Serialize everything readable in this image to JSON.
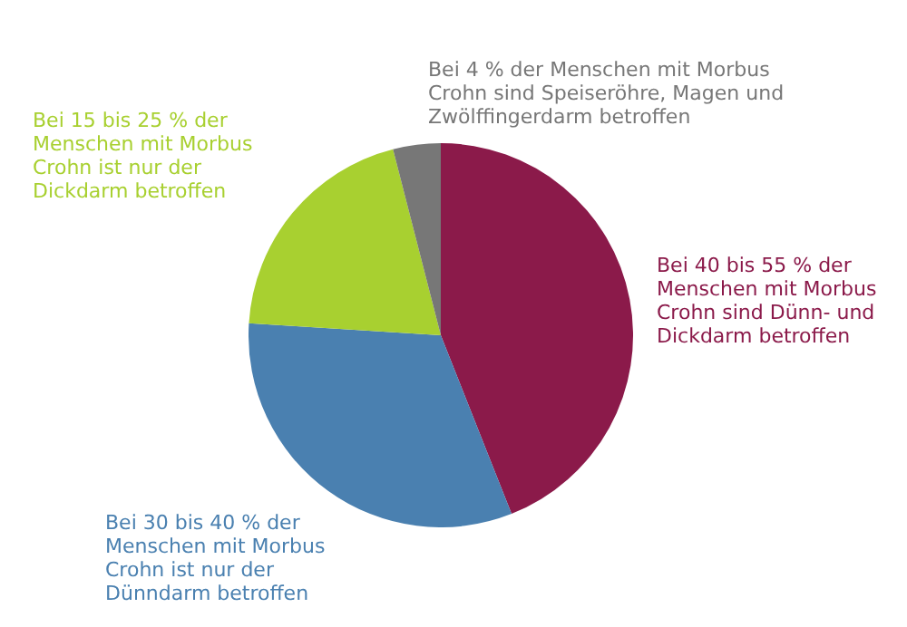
{
  "chart_data": {
    "type": "pie",
    "categories": [
      "Bei 40 bis 55 % der Menschen mit Morbus Crohn sind Dünn- und Dickdarm betroffen",
      "Bei 30 bis 40 % der Menschen mit Morbus Crohn ist nur der Dünndarm betroffen",
      "Bei 15 bis 25 % der Menschen mit Morbus Crohn ist nur der Dickdarm betroffen",
      "Bei 4 % der Menschen mit Morbus Crohn sind Speiseröhre, Magen und Zwölffingerdarm betroffen"
    ],
    "values": [
      44,
      32,
      20,
      4
    ],
    "colors": [
      "#8b1a4a",
      "#4a80b0",
      "#a8d030",
      "#777777"
    ],
    "legend": false
  }
}
